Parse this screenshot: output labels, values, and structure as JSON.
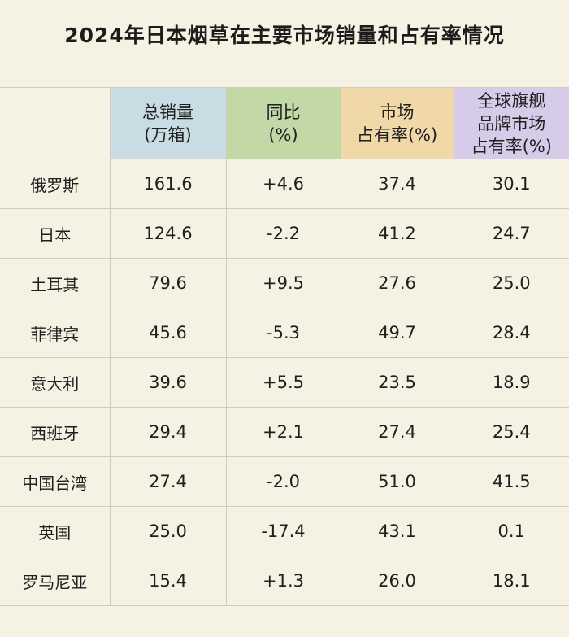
{
  "chart_data": {
    "type": "table",
    "title": "2024年日本烟草在主要市场销量和占有率情况",
    "columns": [
      "",
      "总销量\n(万箱)",
      "同比\n(%)",
      "市场\n占有率(%)",
      "全球旗舰\n品牌市场\n占有率(%)"
    ],
    "header_colors": [
      "",
      "#c9dce3",
      "#c2d9a7",
      "#f0d8a8",
      "#d7cbea"
    ],
    "rows": [
      [
        "俄罗斯",
        "161.6",
        "+4.6",
        "37.4",
        "30.1"
      ],
      [
        "日本",
        "124.6",
        "-2.2",
        "41.2",
        "24.7"
      ],
      [
        "土耳其",
        "79.6",
        "+9.5",
        "27.6",
        "25.0"
      ],
      [
        "菲律宾",
        "45.6",
        "-5.3",
        "49.7",
        "28.4"
      ],
      [
        "意大利",
        "39.6",
        "+5.5",
        "23.5",
        "18.9"
      ],
      [
        "西班牙",
        "29.4",
        "+2.1",
        "27.4",
        "25.4"
      ],
      [
        "中国台湾",
        "27.4",
        "-2.0",
        "51.0",
        "41.5"
      ],
      [
        "英国",
        "25.0",
        "-17.4",
        "43.1",
        "0.1"
      ],
      [
        "罗马尼亚",
        "15.4",
        "+1.3",
        "26.0",
        "18.1"
      ]
    ]
  }
}
